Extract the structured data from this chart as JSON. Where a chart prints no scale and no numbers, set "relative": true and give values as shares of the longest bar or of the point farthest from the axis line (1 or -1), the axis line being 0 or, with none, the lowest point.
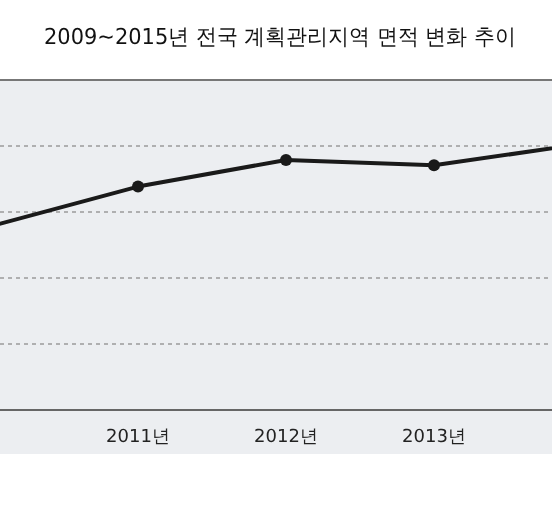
{
  "chart_data": {
    "type": "line",
    "title": "2009~2015년 전국 계획관리지역 면적 변화 추이",
    "relative": true,
    "categories": [
      null,
      "2011년",
      "2012년",
      "2013년",
      null
    ],
    "series": [
      {
        "color": "#1a1a1a",
        "values": [
          0.69,
          0.84,
          0.94,
          0.92,
          1
        ]
      }
    ],
    "marker": "circle",
    "line_style": "solid",
    "grid": "y"
  }
}
